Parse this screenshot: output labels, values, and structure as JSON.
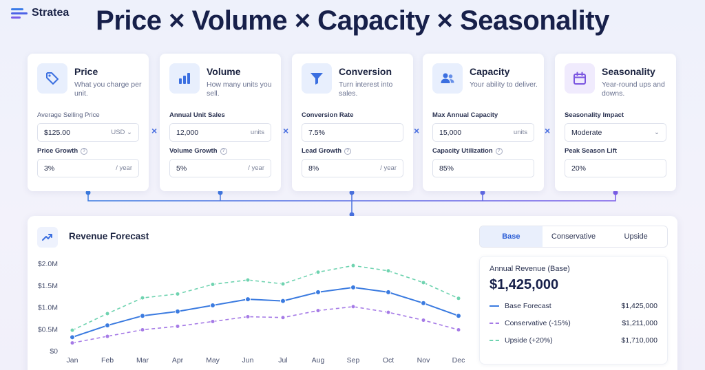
{
  "brand": {
    "name": "Stratea"
  },
  "headline": "Price × Volume × Capacity × Seasonality",
  "operator": "×",
  "cards": [
    {
      "id": "price",
      "title": "Price",
      "desc": "What you charge per unit.",
      "icon": "tag-icon",
      "icon_bg": "#e8effd",
      "icon_color": "#3b6fe0",
      "field1": {
        "label": "Average Selling Price",
        "value": "$125.00",
        "unit": "USD",
        "dropdown": true
      },
      "field2": {
        "label": "Price Growth",
        "value": "3%",
        "unit": "/ year"
      }
    },
    {
      "id": "volume",
      "title": "Volume",
      "desc": "How many units you sell.",
      "icon": "bar-chart-icon",
      "icon_bg": "#e8effd",
      "icon_color": "#3b6fe0",
      "field1": {
        "label": "Annual Unit Sales",
        "value": "12,000",
        "unit": "units"
      },
      "field2": {
        "label": "Volume Growth",
        "value": "5%",
        "unit": "/ year"
      }
    },
    {
      "id": "conversion",
      "title": "Conversion",
      "desc": "Turn interest into sales.",
      "icon": "funnel-icon",
      "icon_bg": "#e8effd",
      "icon_color": "#3b6fe0",
      "field1": {
        "label": "Conversion Rate",
        "value": "7.5%",
        "unit": ""
      },
      "field2": {
        "label": "Lead Growth",
        "value": "8%",
        "unit": "/ year"
      }
    },
    {
      "id": "capacity",
      "title": "Capacity",
      "desc": "Your ability to deliver.",
      "icon": "users-icon",
      "icon_bg": "#e8effd",
      "icon_color": "#3b6fe0",
      "field1": {
        "label": "Max Annual Capacity",
        "value": "15,000",
        "unit": "units"
      },
      "field2": {
        "label": "Capacity Utilization",
        "value": "85%",
        "unit": ""
      }
    },
    {
      "id": "seasonality",
      "title": "Seasonality",
      "desc": "Year-round ups and downs.",
      "icon": "calendar-icon",
      "icon_bg": "#f0ebfd",
      "icon_color": "#7a55e0",
      "field1": {
        "label": "Seasonality Impact",
        "value": "Moderate",
        "unit": "",
        "dropdown": true
      },
      "field2": {
        "label": "Peak Season Lift",
        "value": "20%",
        "unit": ""
      }
    }
  ],
  "forecast": {
    "title": "Revenue Forecast",
    "icon": "trend-up-icon",
    "tabs": [
      "Base",
      "Conservative",
      "Upside"
    ],
    "active_tab": "Base",
    "summary": {
      "label": "Annual Revenue (Base)",
      "value": "$1,425,000",
      "rows": [
        {
          "name": "Base Forecast",
          "value": "$1,425,000",
          "style": "solid",
          "color": "#3b7be0"
        },
        {
          "name": "Conservative (-15%)",
          "value": "$1,211,000",
          "style": "dashed",
          "color": "#a57ae6"
        },
        {
          "name": "Upside (+20%)",
          "value": "$1,710,000",
          "style": "dashed",
          "color": "#6fd3b0"
        }
      ]
    }
  },
  "chart_data": {
    "type": "line",
    "x": [
      "Jan",
      "Feb",
      "Mar",
      "Apr",
      "May",
      "Jun",
      "Jul",
      "Aug",
      "Sep",
      "Oct",
      "Nov",
      "Dec"
    ],
    "yticks": [
      "$0",
      "$0.5M",
      "$1.0M",
      "$1.5M",
      "$2.0M"
    ],
    "ylim": [
      0,
      2000000
    ],
    "grid": false,
    "series": [
      {
        "name": "Upside (+20%)",
        "color": "#6fd3b0",
        "dashed": true,
        "values": [
          470000,
          850000,
          1210000,
          1300000,
          1520000,
          1620000,
          1530000,
          1800000,
          1950000,
          1830000,
          1560000,
          1200000
        ]
      },
      {
        "name": "Base Forecast",
        "color": "#3b7be0",
        "dashed": false,
        "values": [
          310000,
          580000,
          800000,
          900000,
          1040000,
          1180000,
          1140000,
          1340000,
          1450000,
          1340000,
          1090000,
          800000
        ]
      },
      {
        "name": "Conservative (-15%)",
        "color": "#a57ae6",
        "dashed": true,
        "values": [
          180000,
          330000,
          480000,
          560000,
          670000,
          780000,
          760000,
          920000,
          1010000,
          880000,
          700000,
          480000
        ]
      }
    ]
  }
}
